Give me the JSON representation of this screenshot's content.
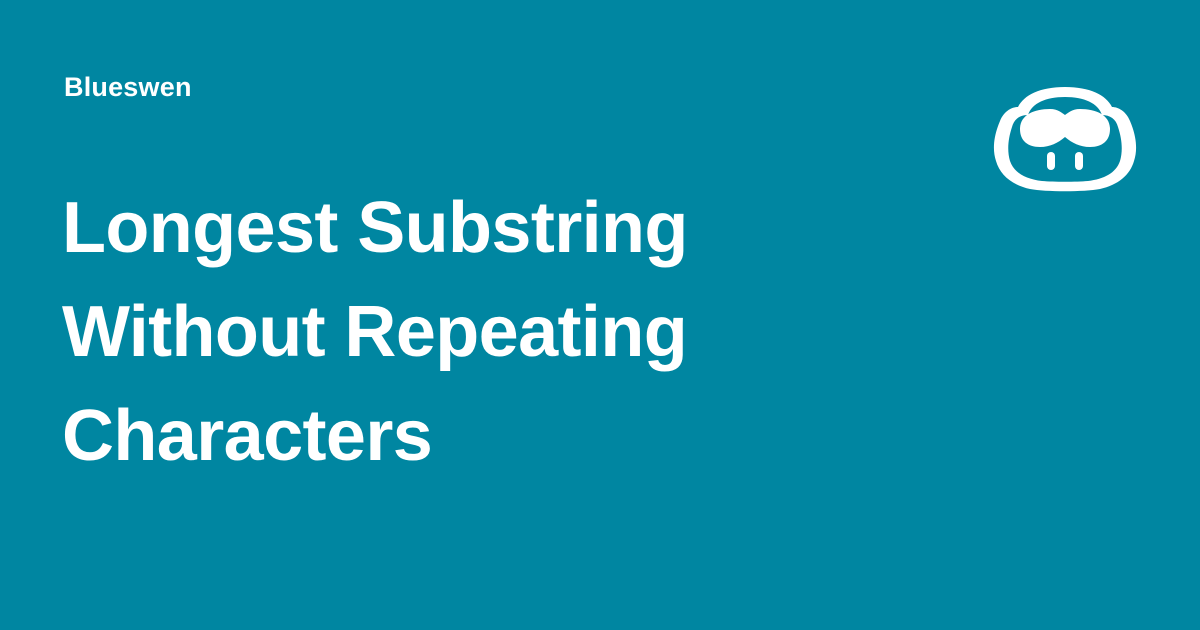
{
  "card": {
    "author": "Blueswen",
    "title_lines": [
      "Longest Substring",
      "Without Repeating",
      "Characters"
    ],
    "logo_icon": "mascot-head-icon",
    "colors": {
      "background": "#0086a1",
      "foreground": "#ffffff"
    }
  }
}
